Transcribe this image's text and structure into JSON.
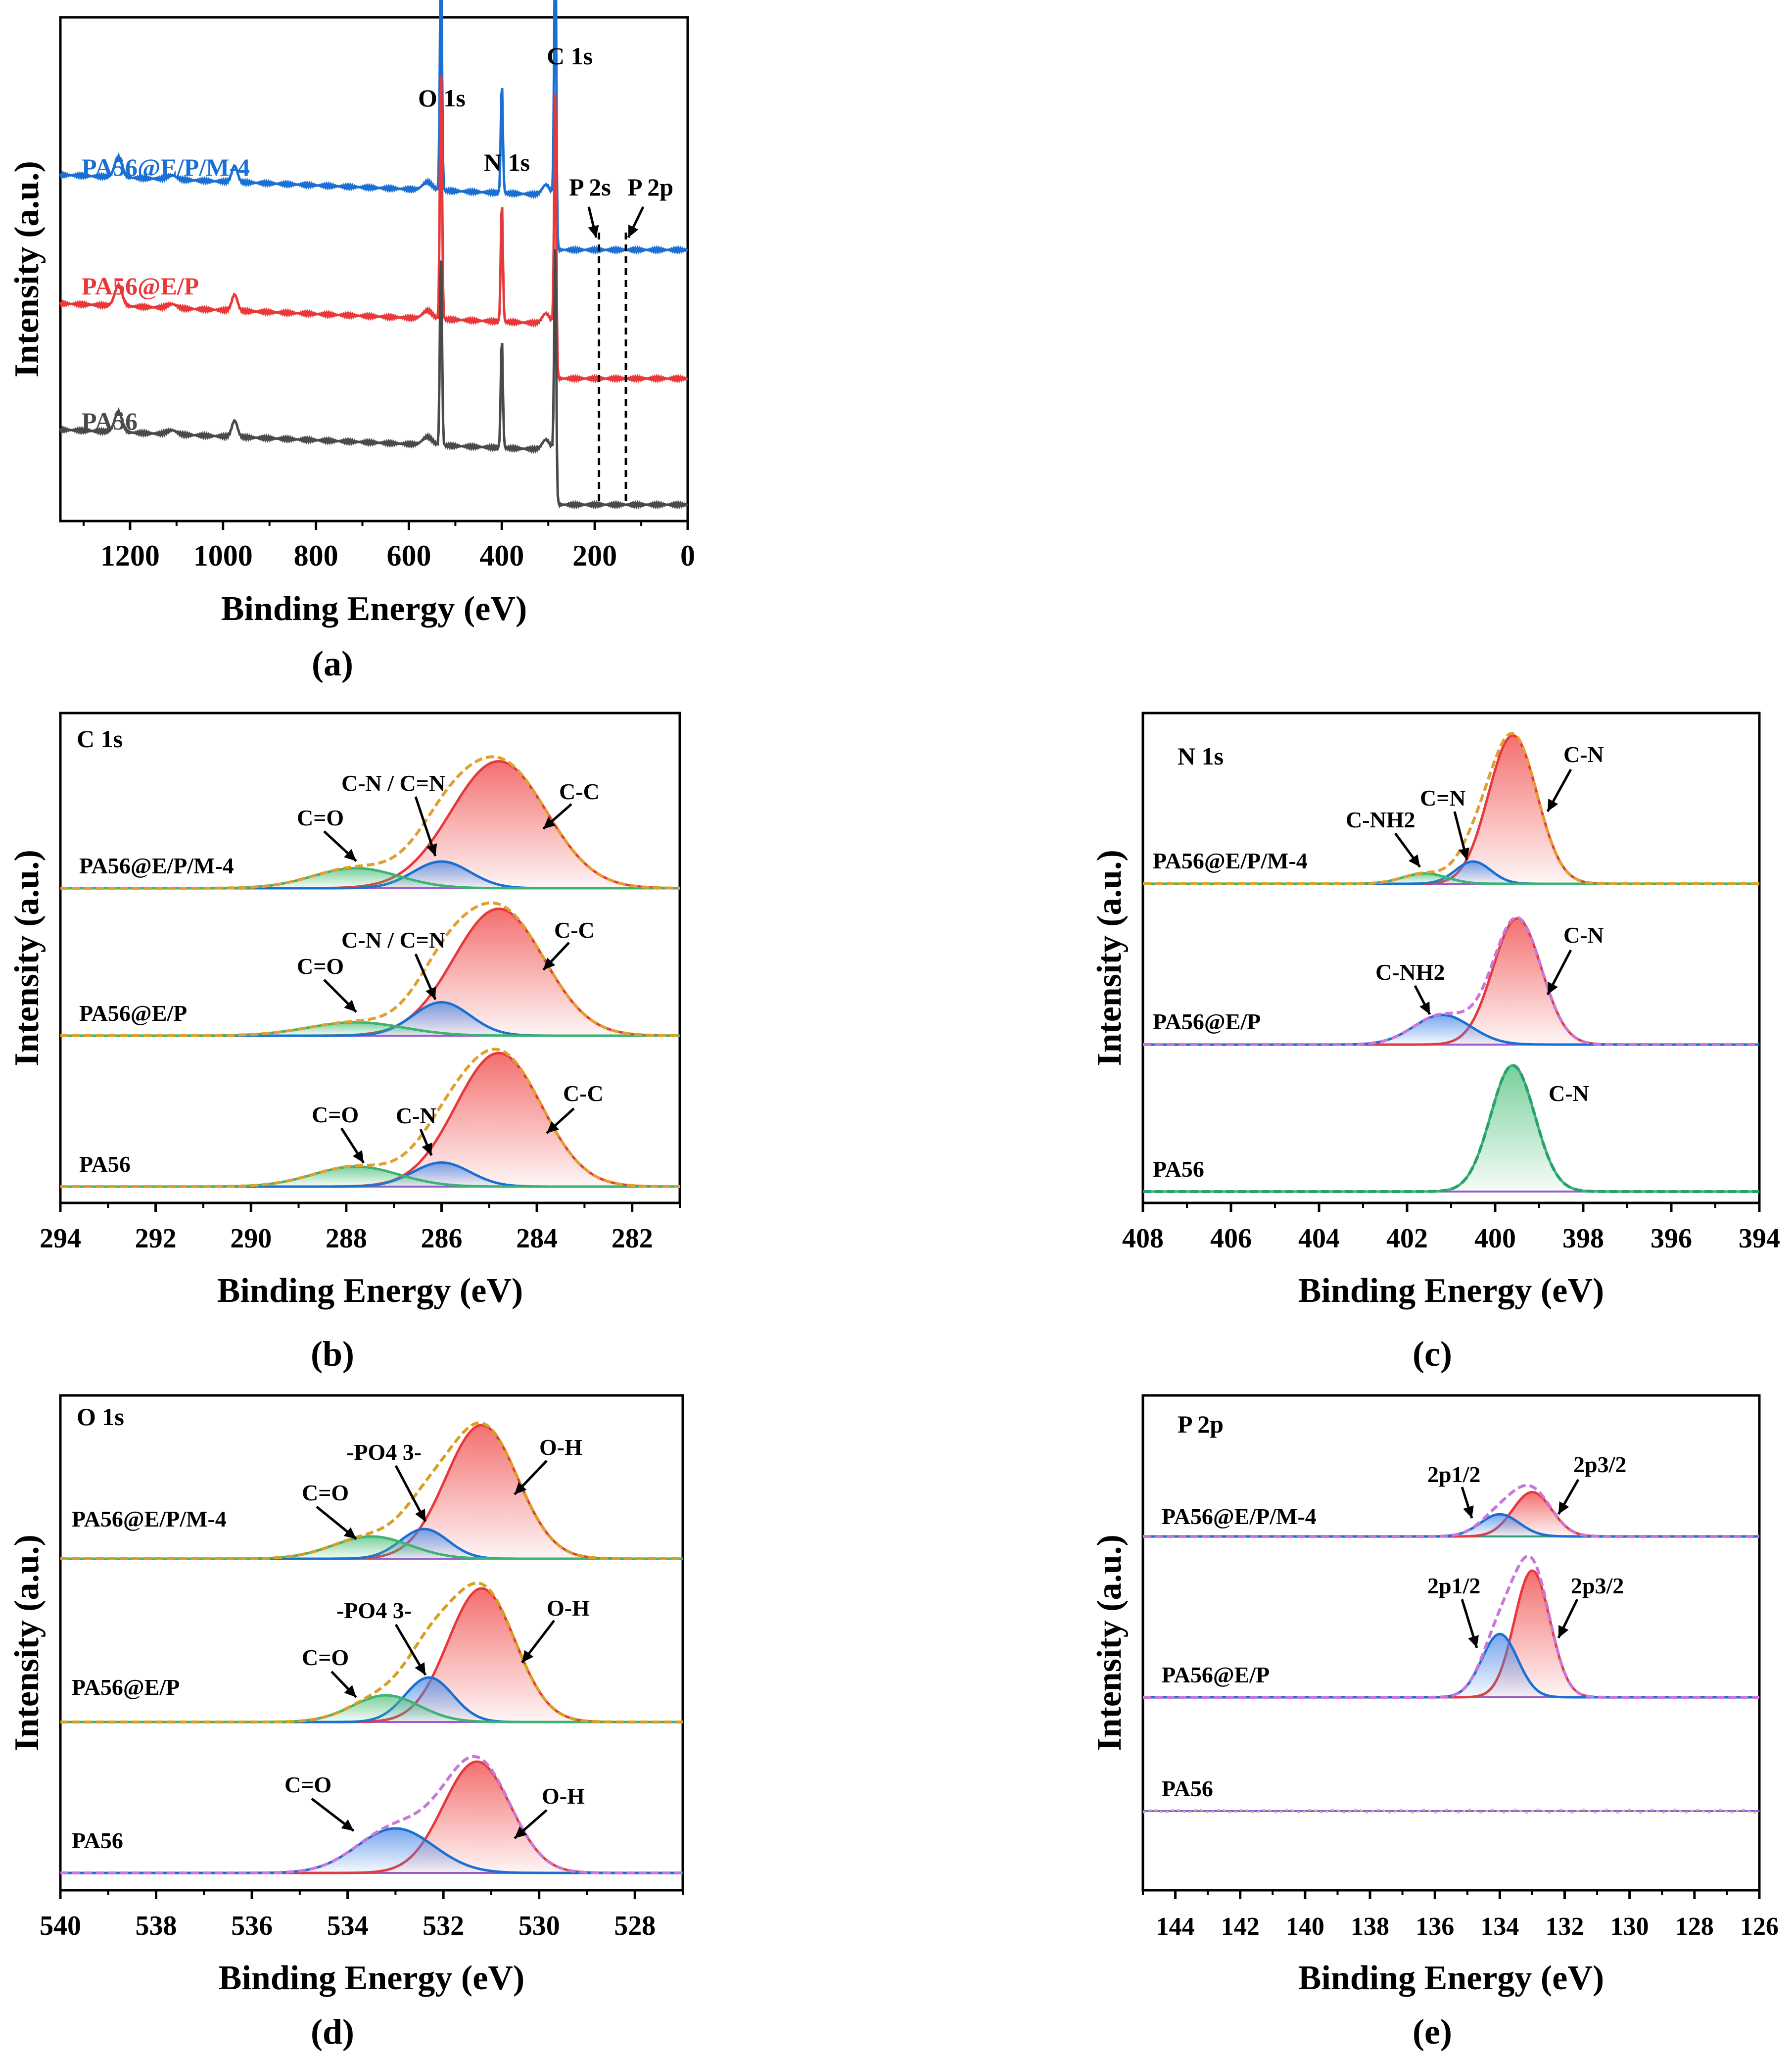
{
  "chart_data": [
    {
      "panel": "(a)",
      "type": "line",
      "xlabel": "Binding Energy (eV)",
      "ylabel": "Intensity (a.u.)",
      "xlim": [
        1350,
        0
      ],
      "xticks": [
        1200,
        1000,
        800,
        600,
        400,
        200,
        0
      ],
      "y_ticks_shown": false,
      "series": [
        {
          "name": "PA56@E/P/M-4",
          "color": "#1a6fd4",
          "offset": 2.0
        },
        {
          "name": "PA56@E/P",
          "color": "#e8383a",
          "offset": 1.0
        },
        {
          "name": "PA56",
          "color": "#4a4a4a",
          "offset": 0.0
        }
      ],
      "peaks": [
        {
          "label": "O 1s",
          "x": 531,
          "heights": [
            1.15,
            1.25,
            0.95
          ]
        },
        {
          "label": "N 1s",
          "x": 400,
          "heights": [
            0.55,
            0.6,
            0.55
          ]
        },
        {
          "label": "C 1s",
          "x": 285,
          "heights": [
            1.35,
            1.15,
            1.0
          ]
        },
        {
          "label": "P 2s",
          "x": 191,
          "marker": "dashed"
        },
        {
          "label": "P 2p",
          "x": 133,
          "marker": "dashed"
        }
      ],
      "annotations": [
        "C 1s",
        "O 1s",
        "N 1s",
        "P 2s",
        "P 2p"
      ]
    },
    {
      "panel": "(b)",
      "type": "line",
      "corner_label": "C 1s",
      "xlabel": "Binding Energy (eV)",
      "ylabel": "Intensity (a.u.)",
      "xlim": [
        294,
        281
      ],
      "xticks": [
        294,
        292,
        290,
        288,
        286,
        284,
        282
      ],
      "stacks": [
        {
          "name": "PA56@E/P/M-4",
          "components": [
            {
              "label": "C-C",
              "center": 284.8,
              "height": 0.95,
              "width": 1.0,
              "color": "#e8383a"
            },
            {
              "label": "C-N / C=N",
              "center": 286.0,
              "height": 0.2,
              "width": 0.6,
              "color": "#1a6fd4"
            },
            {
              "label": "C=O",
              "center": 287.8,
              "height": 0.15,
              "width": 0.9,
              "color": "#3cb371"
            }
          ]
        },
        {
          "name": "PA56@E/P",
          "components": [
            {
              "label": "C-C",
              "center": 284.8,
              "height": 0.95,
              "width": 0.95,
              "color": "#e8383a"
            },
            {
              "label": "C-N / C=N",
              "center": 286.0,
              "height": 0.25,
              "width": 0.6,
              "color": "#1a6fd4"
            },
            {
              "label": "C=O",
              "center": 287.8,
              "height": 0.1,
              "width": 1.0,
              "color": "#3cb371"
            }
          ]
        },
        {
          "name": "PA56",
          "components": [
            {
              "label": "C-C",
              "center": 284.8,
              "height": 1.0,
              "width": 0.9,
              "color": "#e8383a"
            },
            {
              "label": "C-N",
              "center": 286.0,
              "height": 0.18,
              "width": 0.6,
              "color": "#1a6fd4"
            },
            {
              "label": "C=O",
              "center": 287.8,
              "height": 0.15,
              "width": 0.9,
              "color": "#3cb371"
            }
          ]
        }
      ]
    },
    {
      "panel": "(c)",
      "type": "line",
      "corner_label": "N 1s",
      "xlabel": "Binding Energy (eV)",
      "ylabel": "Intensity (a.u.)",
      "xlim": [
        408,
        394
      ],
      "xticks": [
        408,
        406,
        404,
        402,
        400,
        398,
        396,
        394
      ],
      "stacks": [
        {
          "name": "PA56@E/P/M-4",
          "components": [
            {
              "label": "C-N",
              "center": 399.6,
              "height": 1.0,
              "width": 0.55,
              "color": "#e8383a"
            },
            {
              "label": "C=N",
              "center": 400.5,
              "height": 0.15,
              "width": 0.4,
              "color": "#1a6fd4"
            },
            {
              "label": "C-NH2",
              "center": 401.6,
              "height": 0.07,
              "width": 0.5,
              "color": "#3cb371"
            }
          ]
        },
        {
          "name": "PA56@E/P",
          "components": [
            {
              "label": "C-N",
              "center": 399.5,
              "height": 0.85,
              "width": 0.55,
              "color": "#e8383a"
            },
            {
              "label": "C-NH2",
              "center": 401.2,
              "height": 0.2,
              "width": 0.65,
              "color": "#1a6fd4"
            }
          ]
        },
        {
          "name": "PA56",
          "components": [
            {
              "label": "C-N",
              "center": 399.6,
              "height": 0.85,
              "width": 0.5,
              "color": "#3cb371"
            }
          ]
        }
      ]
    },
    {
      "panel": "(d)",
      "type": "line",
      "corner_label": "O 1s",
      "xlabel": "Binding Energy (eV)",
      "ylabel": "Intensity (a.u.)",
      "xlim": [
        540,
        527
      ],
      "xticks": [
        540,
        538,
        536,
        534,
        532,
        530,
        528
      ],
      "stacks": [
        {
          "name": "PA56@E/P/M-4",
          "components": [
            {
              "label": "O-H",
              "center": 531.2,
              "height": 0.9,
              "width": 0.75,
              "color": "#e8383a"
            },
            {
              "label": "-PO4 3-",
              "center": 532.4,
              "height": 0.2,
              "width": 0.5,
              "color": "#1a6fd4"
            },
            {
              "label": "C=O",
              "center": 533.5,
              "height": 0.15,
              "width": 0.8,
              "color": "#3cb371"
            }
          ]
        },
        {
          "name": "PA56@E/P",
          "components": [
            {
              "label": "O-H",
              "center": 531.2,
              "height": 0.9,
              "width": 0.7,
              "color": "#e8383a"
            },
            {
              "label": "-PO4 3-",
              "center": 532.3,
              "height": 0.3,
              "width": 0.5,
              "color": "#1a6fd4"
            },
            {
              "label": "C=O",
              "center": 533.2,
              "height": 0.18,
              "width": 0.7,
              "color": "#3cb371"
            }
          ]
        },
        {
          "name": "PA56",
          "components": [
            {
              "label": "O-H",
              "center": 531.3,
              "height": 0.75,
              "width": 0.7,
              "color": "#e8383a"
            },
            {
              "label": "C=O",
              "center": 533.0,
              "height": 0.3,
              "width": 0.8,
              "color": "#1a6fd4"
            }
          ]
        }
      ]
    },
    {
      "panel": "(e)",
      "type": "line",
      "corner_label": "P 2p",
      "xlabel": "Binding Energy (eV)",
      "ylabel": "Intensity (a.u.)",
      "xlim": [
        145,
        126
      ],
      "xticks": [
        144,
        142,
        140,
        138,
        136,
        134,
        132,
        130,
        128,
        126
      ],
      "stacks": [
        {
          "name": "PA56@E/P/M-4",
          "components": [
            {
              "label": "2p3/2",
              "center": 133.0,
              "height": 0.28,
              "width": 0.6,
              "color": "#e8383a"
            },
            {
              "label": "2p1/2",
              "center": 134.0,
              "height": 0.14,
              "width": 0.6,
              "color": "#1a6fd4"
            }
          ]
        },
        {
          "name": "PA56@E/P",
          "components": [
            {
              "label": "2p3/2",
              "center": 133.0,
              "height": 0.8,
              "width": 0.55,
              "color": "#e8383a"
            },
            {
              "label": "2p1/2",
              "center": 134.0,
              "height": 0.4,
              "width": 0.55,
              "color": "#1a6fd4"
            }
          ]
        },
        {
          "name": "PA56",
          "components": []
        }
      ]
    }
  ],
  "ui": {
    "captions": [
      "(a)",
      "(b)",
      "(c)",
      "(d)",
      "(e)"
    ],
    "colors": {
      "axis": "#000000",
      "envelope_b": "#e0a030",
      "envelope_c_top": "#e0a030",
      "envelope_c_mid": "#c878d8",
      "envelope_c_bottom": "#28a070",
      "envelope_d": "#d8a020",
      "envelope_e": "#c878d8"
    }
  }
}
